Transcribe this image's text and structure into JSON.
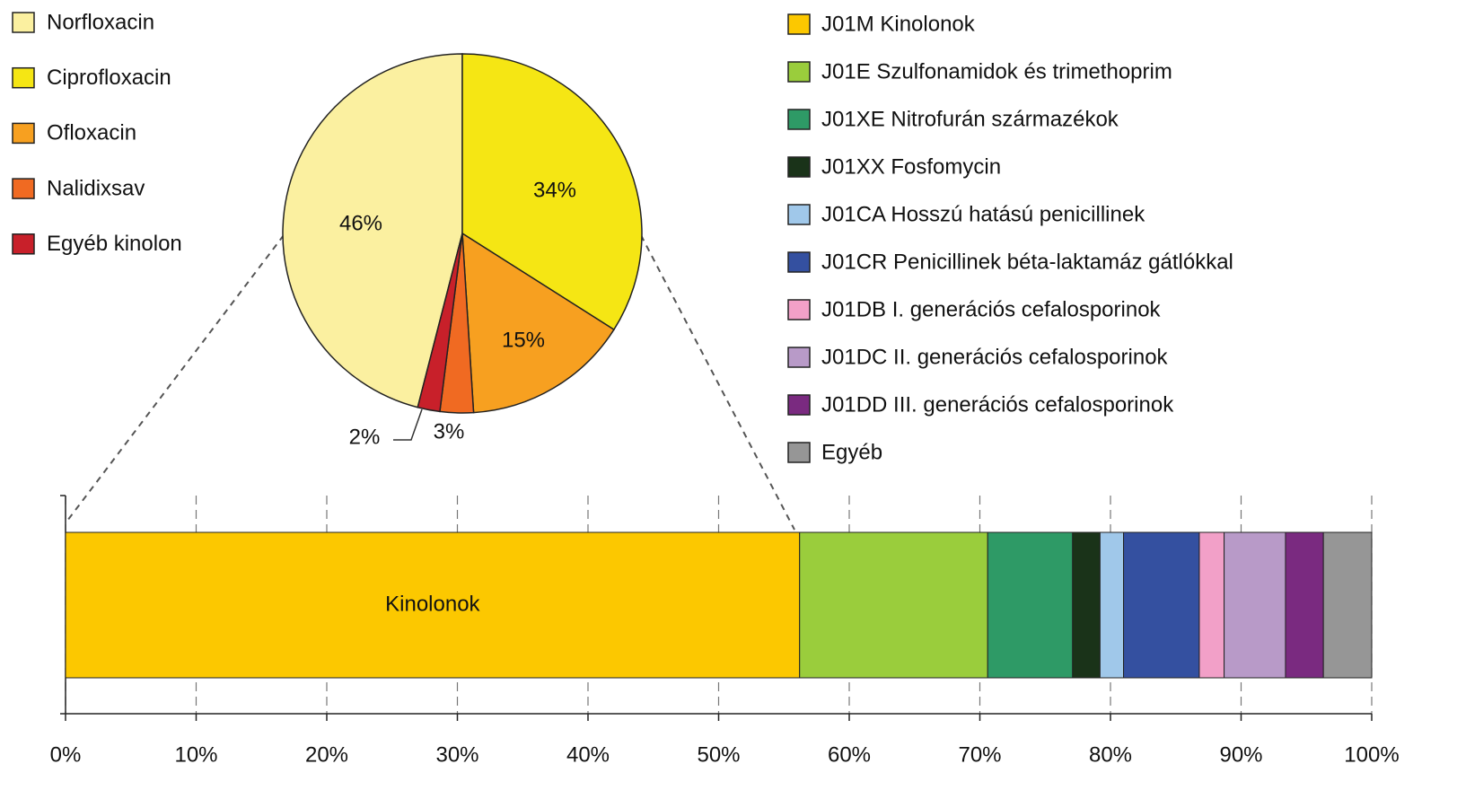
{
  "chart_data": [
    {
      "type": "pie",
      "categories": [
        "Norfloxacin",
        "Ciprofloxacin",
        "Ofloxacin",
        "Nalidixsav",
        "Egyéb kinolon"
      ],
      "values": [
        46,
        34,
        15,
        3,
        2
      ],
      "value_labels": [
        "46%",
        "34%",
        "15%",
        "3%",
        "2%"
      ],
      "colors": [
        "#fbf0a0",
        "#f5e614",
        "#f7a020",
        "#f06a22",
        "#c8202a"
      ],
      "legend": "top-left"
    },
    {
      "type": "stacked-bar",
      "orientation": "horizontal",
      "annotations": [
        "Kinolonok"
      ],
      "series": [
        {
          "name": "J01M Kinolonok",
          "color": "#fcc800",
          "values": [
            56.2
          ]
        },
        {
          "name": "J01E Szulfonamidok és trimethoprim",
          "color": "#9acd3c",
          "values": [
            14.4
          ]
        },
        {
          "name": "J01XE Nitrofurán származékok",
          "color": "#2e9a66",
          "values": [
            6.5
          ]
        },
        {
          "name": "J01XX Fosfomycin",
          "color": "#1a3319",
          "values": [
            2.1
          ]
        },
        {
          "name": "J01CA Hosszú hatású penicillinek",
          "color": "#a0c8ea",
          "values": [
            1.8
          ]
        },
        {
          "name": "J01CR Penicillinek béta-laktamáz gátlókkal",
          "color": "#3450a0",
          "values": [
            5.8
          ]
        },
        {
          "name": "J01DB I. generációs cefalosporinok",
          "color": "#f2a0c8",
          "values": [
            1.9
          ]
        },
        {
          "name": "J01DC II. generációs cefalosporinok",
          "color": "#b89ac8",
          "values": [
            4.7
          ]
        },
        {
          "name": "J01DD III. generációs cefalosporinok",
          "color": "#7a2a80",
          "values": [
            2.9
          ]
        },
        {
          "name": "Egyéb",
          "color": "#969696",
          "values": [
            3.7
          ]
        }
      ],
      "xlim": [
        0,
        100
      ],
      "xticks": [
        {
          "value": 0,
          "label": "0%"
        },
        {
          "value": 10,
          "label": "10%"
        },
        {
          "value": 20,
          "label": "20%"
        },
        {
          "value": 30,
          "label": "30%"
        },
        {
          "value": 40,
          "label": "40%"
        },
        {
          "value": 50,
          "label": "50%"
        },
        {
          "value": 60,
          "label": "60%"
        },
        {
          "value": 70,
          "label": "70%"
        },
        {
          "value": 80,
          "label": "80%"
        },
        {
          "value": 90,
          "label": "90%"
        },
        {
          "value": 100,
          "label": "100%"
        }
      ],
      "grid": true,
      "legend": "top-right"
    }
  ]
}
